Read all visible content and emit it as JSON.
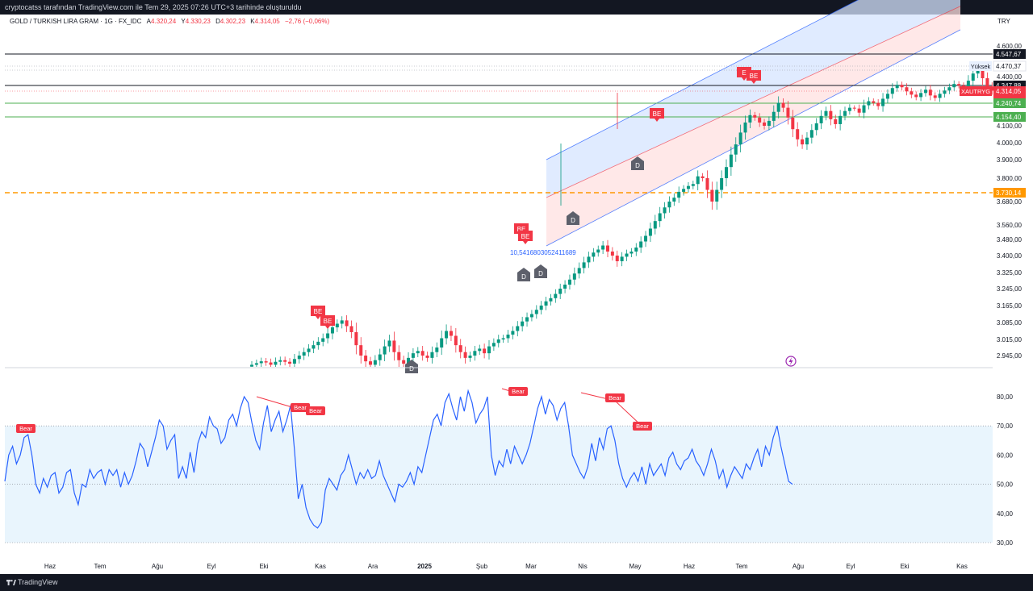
{
  "header": {
    "attribution": "cryptocatss tarafından TradingView.com ile Tem 29, 2025 07:26 UTC+3 tarihinde oluşturuldu"
  },
  "legend": {
    "symbol": "GOLD / TURKISH LIRA GRAM · 1G · FX_IDC",
    "open_label": "A",
    "open": "4.320,24",
    "high_label": "Y",
    "high": "4.330,23",
    "low_label": "D",
    "low": "4.302,23",
    "close_label": "K",
    "close": "4.314,05",
    "change": "−2,76 (−0,06%)"
  },
  "currency": "TRY",
  "footer": {
    "brand": "TradingView"
  },
  "colors": {
    "up": "#089981",
    "down": "#f23645",
    "rsi_line": "#2962ff",
    "support_line": "#4caf50",
    "resistance_line": "#131722",
    "dashed_level": "#ff9800",
    "channel_blue": "#d6e4ff",
    "channel_red": "#ffe0e0",
    "rsi_band": "#e3f2fd"
  },
  "chart_data": [
    {
      "type": "candlestick",
      "x_ticks": [
        "Haz",
        "Tem",
        "Ağu",
        "Eyl",
        "Eki",
        "Kas",
        "Ara",
        "2025",
        "Şub",
        "Mar",
        "Nis",
        "May",
        "Haz",
        "Tem",
        "Ağu",
        "Eyl",
        "Eki",
        "Kas"
      ],
      "y_ticks": [
        "4.600,00",
        "4.400,00",
        "4.100,00",
        "4.000,00",
        "3.900,00",
        "3.800,00",
        "3.680,00",
        "3.560,00",
        "3.480,00",
        "3.400,00",
        "3.325,00",
        "3.245,00",
        "3.165,00",
        "3.085,00",
        "3.015,00",
        "2.945,00"
      ],
      "price_tags": [
        {
          "value": 4547.67,
          "label": "4.547,67",
          "kind": "resistance"
        },
        {
          "value": 4470.37,
          "label": "4.470,37",
          "name": "Yüksek",
          "kind": "high"
        },
        {
          "value": 4347.88,
          "label": "4.347,88",
          "kind": "resistance"
        },
        {
          "value": 4314.05,
          "label": "4.314,05",
          "name": "XAUTRYG",
          "countdown": "17:33:58",
          "kind": "last"
        },
        {
          "value": 4240.74,
          "label": "4.240,74",
          "kind": "support"
        },
        {
          "value": 4154.4,
          "label": "4.154,40",
          "kind": "support"
        },
        {
          "value": 3730.14,
          "label": "3.730,14",
          "kind": "dashed"
        }
      ],
      "annotations": {
        "signals": [
          {
            "text": "BE",
            "date": "2024-09-20",
            "value": 3120
          },
          {
            "text": "BE",
            "date": "2024-09-25",
            "value": 3075
          },
          {
            "text": "BE",
            "date": "2025-02-20",
            "value": 3505
          },
          {
            "text": "BE",
            "date": "2025-02-23",
            "value": 3470
          },
          {
            "text": "BE",
            "date": "2025-05-05",
            "value": 4215
          },
          {
            "text": "E",
            "date": "2025-06-30",
            "value": 4440
          },
          {
            "text": "BE",
            "date": "2025-07-03",
            "value": 4425
          },
          {
            "text": "D",
            "date": "2024-11-27",
            "value": 2890
          },
          {
            "text": "D",
            "date": "2025-02-22",
            "value": 3265
          },
          {
            "text": "D",
            "date": "2025-03-01",
            "value": 3275
          },
          {
            "text": "D",
            "date": "2025-03-25",
            "value": 3615
          },
          {
            "text": "D",
            "date": "2025-04-28",
            "value": 3875
          }
        ],
        "channel_label": "10,5416803052411689"
      },
      "series_close": [
        2905,
        2912,
        2920,
        2915,
        2905,
        2918,
        2925,
        2918,
        2910,
        2930,
        2945,
        2960,
        2975,
        2990,
        3005,
        3020,
        3040,
        3065,
        3080,
        3095,
        3070,
        3045,
        2990,
        2945,
        2920,
        2905,
        2925,
        2950,
        2985,
        3010,
        2960,
        2925,
        2910,
        2935,
        2955,
        2965,
        2945,
        2935,
        2960,
        2980,
        3020,
        3050,
        3030,
        2990,
        2960,
        2935,
        2945,
        2965,
        2975,
        2955,
        2985,
        3000,
        3015,
        3020,
        3035,
        3050,
        3070,
        3090,
        3110,
        3125,
        3145,
        3165,
        3185,
        3200,
        3220,
        3245,
        3265,
        3290,
        3320,
        3345,
        3370,
        3395,
        3415,
        3430,
        3450,
        3420,
        3400,
        3375,
        3395,
        3410,
        3420,
        3440,
        3470,
        3500,
        3540,
        3580,
        3620,
        3650,
        3680,
        3700,
        3730,
        3745,
        3760,
        3770,
        3810,
        3800,
        3740,
        3680,
        3740,
        3800,
        3860,
        3930,
        3990,
        4060,
        4120,
        4165,
        4150,
        4120,
        4100,
        4130,
        4185,
        4240,
        4210,
        4150,
        4080,
        4020,
        3990,
        4030,
        4075,
        4115,
        4160,
        4190,
        4140,
        4110,
        4160,
        4190,
        4210,
        4205,
        4180,
        4225,
        4250,
        4240,
        4220,
        4265,
        4295,
        4330,
        4350,
        4335,
        4310,
        4290,
        4275,
        4300,
        4320,
        4285,
        4270,
        4295,
        4315,
        4335,
        4355,
        4345,
        4330,
        4375,
        4420,
        4455,
        4390,
        4340,
        4314
      ],
      "candle_step": 5.88
    },
    {
      "type": "line",
      "indicator": "RSI",
      "y_ticks": [
        "80,00",
        "70,00",
        "60,00",
        "50,00",
        "40,00",
        "30,00"
      ],
      "ylim": [
        30,
        80
      ],
      "band": [
        30,
        70
      ],
      "mid": 50,
      "values": [
        51,
        60,
        63,
        57,
        60,
        66,
        67,
        60,
        50,
        47,
        52,
        49,
        53,
        54,
        47,
        49,
        54,
        55,
        47,
        43,
        50,
        49,
        55,
        52,
        54,
        55,
        50,
        55,
        53,
        55,
        49,
        54,
        50,
        53,
        58,
        64,
        62,
        56,
        61,
        66,
        72,
        70,
        62,
        65,
        67,
        52,
        56,
        52,
        61,
        54,
        64,
        68,
        66,
        73,
        70,
        69,
        64,
        66,
        72,
        74,
        70,
        76,
        80,
        78,
        71,
        65,
        62,
        71,
        77,
        68,
        72,
        75,
        68,
        72,
        77,
        62,
        45,
        50,
        42,
        38,
        36,
        35,
        37,
        48,
        52,
        50,
        48,
        53,
        55,
        60,
        55,
        50,
        54,
        52,
        55,
        52,
        53,
        58,
        53,
        50,
        47,
        44,
        50,
        49,
        51,
        54,
        50,
        56,
        54,
        60,
        66,
        72,
        74,
        70,
        78,
        81,
        76,
        72,
        80,
        75,
        82,
        78,
        71,
        74,
        76,
        80,
        60,
        53,
        58,
        56,
        62,
        57,
        63,
        60,
        57,
        60,
        64,
        70,
        76,
        80,
        74,
        79,
        77,
        72,
        76,
        78,
        70,
        60,
        57,
        54,
        52,
        56,
        64,
        58,
        66,
        62,
        69,
        70,
        65,
        57,
        52,
        49,
        52,
        54,
        51,
        56,
        50,
        57,
        53,
        55,
        57,
        53,
        59,
        61,
        57,
        55,
        58,
        59,
        62,
        58,
        56,
        53,
        57,
        62,
        58,
        52,
        55,
        49,
        53,
        56,
        54,
        52,
        57,
        55,
        59,
        62,
        56,
        63,
        60,
        66,
        70,
        63,
        57,
        51,
        50
      ],
      "x_ticks": [
        "Haz",
        "Tem",
        "Ağu",
        "Eyl",
        "Eki",
        "Kas",
        "Ara",
        "2025",
        "Şub",
        "Mar",
        "Nis",
        "May",
        "Haz",
        "Tem",
        "Ağu",
        "Eyl",
        "Eki",
        "Kas"
      ],
      "annotations": [
        {
          "text": "Bear",
          "value": 66
        },
        {
          "text": "Bear",
          "value": 75
        },
        {
          "text": "Bear",
          "value": 73
        },
        {
          "text": "Bear",
          "value": 81
        },
        {
          "text": "Bear",
          "value": 79
        },
        {
          "text": "Bear",
          "value": 71
        }
      ]
    }
  ]
}
